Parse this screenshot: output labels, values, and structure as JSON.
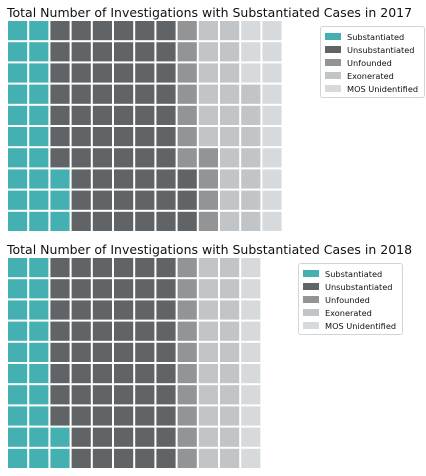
{
  "chart_data": [
    {
      "type": "waffle",
      "title": "Total Number of Investigations with Substantiated Cases in 2017",
      "legend": {
        "placement": "top-right",
        "entries": [
          "Substantiated",
          "Unsubstantiated",
          "Unfounded",
          "Exonerated",
          "MOS Unidentified"
        ]
      },
      "rows": 10,
      "series": [
        {
          "name": "Substantiated",
          "value": 23,
          "color": "#45b0b2"
        },
        {
          "name": "Unsubstantiated",
          "value": 60,
          "color": "#616466"
        },
        {
          "name": "Unfounded",
          "value": 11,
          "color": "#929496"
        },
        {
          "name": "Exonerated",
          "value": 23,
          "color": "#c1c5c8"
        },
        {
          "name": "MOS Unidentified",
          "value": 13,
          "color": "#d7dadd"
        }
      ]
    },
    {
      "type": "waffle",
      "title": "Total Number of Investigations with Substantiated Cases in 2018",
      "legend": {
        "placement": "top-right",
        "entries": [
          "Substantiated",
          "Unsubstantiated",
          "Unfounded",
          "Exonerated",
          "MOS Unidentified"
        ]
      },
      "rows": 10,
      "series": [
        {
          "name": "Substantiated",
          "value": 22,
          "color": "#45b0b2"
        },
        {
          "name": "Unsubstantiated",
          "value": 58,
          "color": "#616466"
        },
        {
          "name": "Unfounded",
          "value": 10,
          "color": "#929496"
        },
        {
          "name": "Exonerated",
          "value": 20,
          "color": "#c1c5c8"
        },
        {
          "name": "MOS Unidentified",
          "value": 10,
          "color": "#d7dadd"
        }
      ]
    }
  ]
}
